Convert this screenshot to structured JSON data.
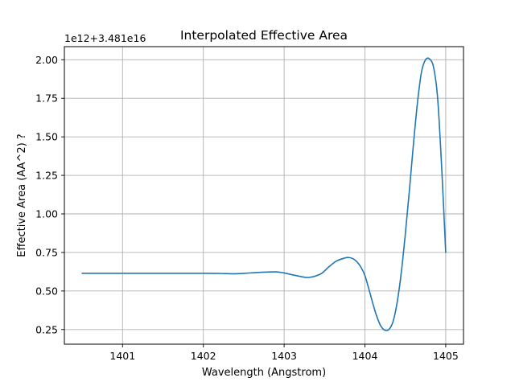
{
  "chart_data": {
    "type": "line",
    "title": "Interpolated Effective Area",
    "xlabel": "Wavelength (Angstrom)",
    "ylabel": "Effective Area (AA^2) ?",
    "y_offset_text": "1e12+3.481e16",
    "xlim": [
      1400.28,
      1405.22
    ],
    "ylim": [
      0.155,
      2.085
    ],
    "x_ticks": [
      1401,
      1402,
      1403,
      1404,
      1405
    ],
    "x_tick_labels": [
      "1401",
      "1402",
      "1403",
      "1404",
      "1405"
    ],
    "y_ticks": [
      0.25,
      0.5,
      0.75,
      1.0,
      1.25,
      1.5,
      1.75,
      2.0
    ],
    "y_tick_labels": [
      "0.25",
      "0.50",
      "0.75",
      "1.00",
      "1.25",
      "1.50",
      "1.75",
      "2.00"
    ],
    "grid": true,
    "line_color": "#1f77b4",
    "series": [
      {
        "x": [
          1400.5,
          1401.0,
          1401.5,
          1402.0,
          1402.2,
          1402.4,
          1402.6,
          1402.75,
          1402.9,
          1403.0,
          1403.15,
          1403.3,
          1403.45,
          1403.55,
          1403.65,
          1403.75,
          1403.8,
          1403.85,
          1403.9,
          1403.95,
          1404.0,
          1404.05,
          1404.1,
          1404.15,
          1404.2,
          1404.25,
          1404.3,
          1404.35,
          1404.4,
          1404.45,
          1404.5,
          1404.55,
          1404.6,
          1404.65,
          1404.7,
          1404.75,
          1404.8,
          1404.85,
          1404.9,
          1404.95,
          1405.0
        ],
        "y": [
          0.615,
          0.615,
          0.615,
          0.615,
          0.614,
          0.612,
          0.618,
          0.622,
          0.624,
          0.617,
          0.6,
          0.588,
          0.61,
          0.655,
          0.695,
          0.714,
          0.717,
          0.71,
          0.69,
          0.655,
          0.6,
          0.51,
          0.415,
          0.33,
          0.27,
          0.245,
          0.252,
          0.305,
          0.43,
          0.62,
          0.87,
          1.15,
          1.45,
          1.72,
          1.92,
          2.0,
          2.005,
          1.95,
          1.75,
          1.3,
          0.75
        ]
      }
    ]
  }
}
